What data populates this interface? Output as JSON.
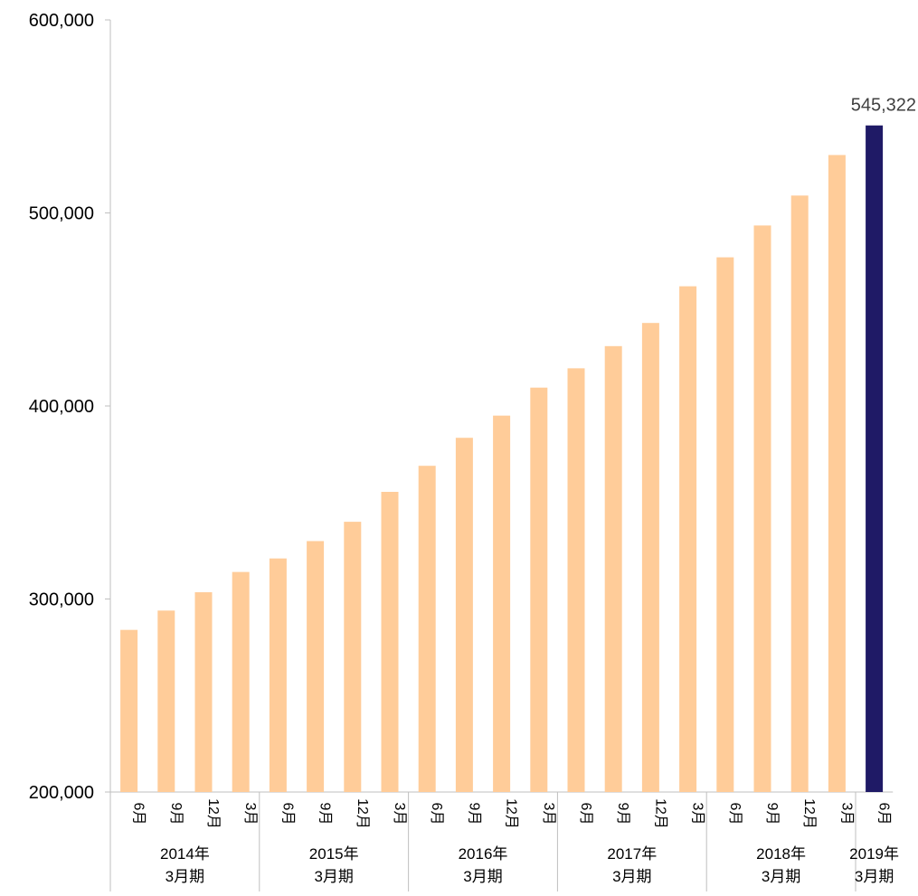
{
  "chart_data": {
    "type": "bar",
    "title": "",
    "xlabel": "",
    "ylabel": "",
    "ylim": [
      200000,
      600000
    ],
    "yticks": [
      200000,
      300000,
      400000,
      500000,
      600000
    ],
    "ytick_labels": [
      "200,000",
      "300,000",
      "400,000",
      "500,000",
      "600,000"
    ],
    "grid": false,
    "categories": [
      "6月",
      "9月",
      "12月",
      "3月",
      "6月",
      "9月",
      "12月",
      "3月",
      "6月",
      "9月",
      "12月",
      "3月",
      "6月",
      "9月",
      "12月",
      "3月",
      "6月",
      "9月",
      "12月",
      "3月",
      "6月"
    ],
    "groups": [
      {
        "year": "2014年",
        "period": "3月期",
        "count": 4
      },
      {
        "year": "2015年",
        "period": "3月期",
        "count": 4
      },
      {
        "year": "2016年",
        "period": "3月期",
        "count": 4
      },
      {
        "year": "2017年",
        "period": "3月期",
        "count": 4
      },
      {
        "year": "2018年",
        "period": "3月期",
        "count": 4
      },
      {
        "year": "2019年",
        "period": "3月期",
        "count": 1
      }
    ],
    "values": [
      284000,
      294000,
      303500,
      314000,
      321000,
      330000,
      340000,
      355500,
      369000,
      383500,
      395000,
      409500,
      419500,
      431000,
      443000,
      462000,
      477000,
      493500,
      509000,
      530000,
      545322
    ],
    "highlight_index": 20,
    "data_labels": [
      {
        "index": 20,
        "text": "545,322"
      }
    ],
    "colors": {
      "bar": "#FFCC99",
      "highlight": "#1F1A66",
      "axis": "#BFBFBF",
      "text": "#000000",
      "label": "#404040"
    }
  }
}
